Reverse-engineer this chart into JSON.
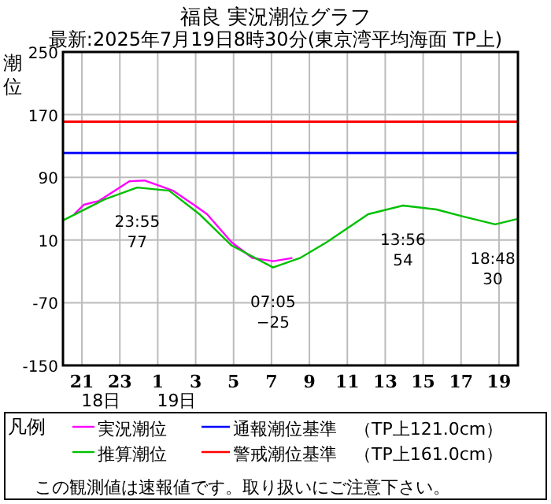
{
  "chart_data": {
    "type": "line",
    "title": "福良 実況潮位グラフ",
    "subtitle": "最新:2025年7月19日8時30分(東京湾平均海面 TP上)",
    "ylabel": "潮位",
    "legend_title": "凡例",
    "xlim": [
      "2025-07-18T20:00",
      "2025-07-19T20:00"
    ],
    "xticks": [
      {
        "value": "2025-07-18T21:00",
        "label": "21"
      },
      {
        "value": "2025-07-18T23:00",
        "label": "23"
      },
      {
        "value": "2025-07-19T01:00",
        "label": "1"
      },
      {
        "value": "2025-07-19T03:00",
        "label": "3"
      },
      {
        "value": "2025-07-19T05:00",
        "label": "5"
      },
      {
        "value": "2025-07-19T07:00",
        "label": "7"
      },
      {
        "value": "2025-07-19T09:00",
        "label": "9"
      },
      {
        "value": "2025-07-19T11:00",
        "label": "11"
      },
      {
        "value": "2025-07-19T13:00",
        "label": "13"
      },
      {
        "value": "2025-07-19T15:00",
        "label": "15"
      },
      {
        "value": "2025-07-19T17:00",
        "label": "17"
      },
      {
        "value": "2025-07-19T19:00",
        "label": "19"
      }
    ],
    "ylim": [
      -150,
      250
    ],
    "yticks": [
      -150,
      -70,
      10,
      90,
      170,
      250
    ],
    "grid": true,
    "legend": "bottom",
    "series": [
      {
        "name": "実況潮位",
        "color": "#ff00ff",
        "x": [
          "2025-07-18T20:36",
          "2025-07-18T21:06",
          "2025-07-18T21:54",
          "2025-07-18T23:30",
          "2025-07-19T00:18",
          "2025-07-19T01:00",
          "2025-07-19T01:48",
          "2025-07-19T02:54",
          "2025-07-19T03:36",
          "2025-07-19T04:54",
          "2025-07-19T06:00",
          "2025-07-19T07:06",
          "2025-07-19T08:06"
        ],
        "values": [
          43,
          55,
          60,
          85,
          86,
          80,
          73,
          55,
          43,
          7,
          -13,
          -17,
          -13
        ]
      },
      {
        "name": "推算潮位",
        "color": "#00c000",
        "x": [
          "2025-07-18T20:00",
          "2025-07-18T22:12",
          "2025-07-18T23:55",
          "2025-07-19T01:36",
          "2025-07-19T03:12",
          "2025-07-19T04:54",
          "2025-07-19T06:18",
          "2025-07-19T07:05",
          "2025-07-19T08:30",
          "2025-07-19T09:54",
          "2025-07-19T12:06",
          "2025-07-19T13:56",
          "2025-07-19T15:42",
          "2025-07-19T17:06",
          "2025-07-19T18:48",
          "2025-07-19T20:00"
        ],
        "values": [
          35,
          62,
          77,
          73,
          43,
          3,
          -15,
          -25,
          -13,
          7,
          43,
          54,
          49,
          40,
          30,
          37
        ]
      }
    ],
    "ref_lines": [
      {
        "axis": "y",
        "value": 121,
        "label": "通報潮位基準　（TP上121.0cm）",
        "color": "#0000ff"
      },
      {
        "axis": "y",
        "value": 161,
        "label": "警戒潮位基準　（TP上161.0cm）",
        "color": "#ff0000"
      }
    ],
    "annotations": [
      {
        "text": "23:55\n77",
        "x": "2025-07-18T23:55",
        "y": 77
      },
      {
        "text": "07:05\n−25",
        "x": "2025-07-19T07:05",
        "y": -25
      },
      {
        "text": "13:56\n54",
        "x": "2025-07-19T13:56",
        "y": 54
      },
      {
        "text": "18:48\n30",
        "x": "2025-07-19T18:48",
        "y": 30
      },
      "18日",
      "19日",
      "この観測値は速報値です。取り扱いにご注意下さい。"
    ]
  }
}
